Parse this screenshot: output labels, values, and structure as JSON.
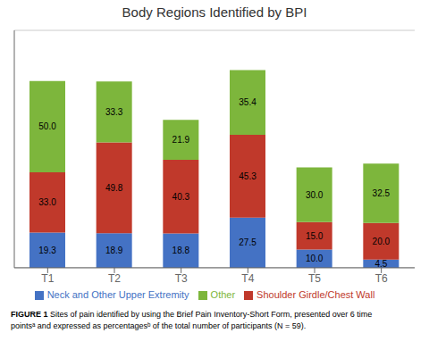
{
  "chart_data": {
    "type": "bar",
    "title": "Body Regions Identified by BPI",
    "categories": [
      "T1",
      "T2",
      "T3",
      "T4",
      "T5",
      "T6"
    ],
    "series": [
      {
        "name": "Neck and Other Upper Extremity",
        "color": "#4472c4",
        "values": [
          19.3,
          18.9,
          18.8,
          27.5,
          10.0,
          4.5
        ],
        "value_labels": [
          "19.3",
          "18.9",
          "18.8",
          "27.5",
          "10.0",
          "4.5"
        ]
      },
      {
        "name": "Shoulder Girdle/Chest Wall",
        "color": "#c0392b",
        "values": [
          33.0,
          49.8,
          40.3,
          45.3,
          15.0,
          20.0
        ],
        "value_labels": [
          "33.0",
          "49.8",
          "40.3",
          "45.3",
          "15.0",
          "20.0"
        ]
      },
      {
        "name": "Other",
        "color": "#7db63c",
        "values": [
          50.0,
          33.3,
          21.9,
          35.4,
          30.0,
          32.5
        ],
        "value_labels": [
          "50.0",
          "33.3",
          "21.9",
          "35.4",
          "30.0",
          "32.5"
        ]
      }
    ],
    "stacked": true,
    "data_labels": true,
    "ylim": [
      0,
      130
    ],
    "yticks": [
      20,
      40,
      60,
      80,
      100,
      120
    ],
    "grid": true,
    "legend": "bottom",
    "tick_labels": "x",
    "annotations": [
      "FIGURE 1",
      " Sites of pain identified by using the Brief Pain Inventory-Short Form, presented over 6 time\npointsᵃ and expressed as percentagesᵇ of the total number of participants (N = 59)."
    ]
  }
}
